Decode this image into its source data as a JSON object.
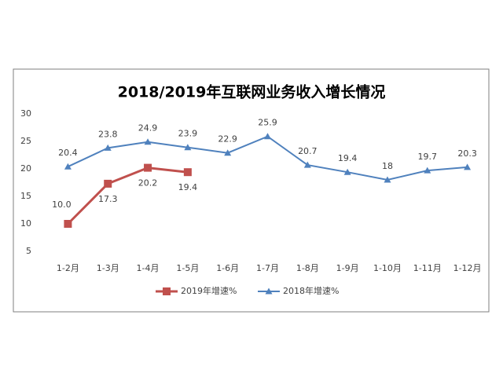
{
  "chart_data": {
    "type": "line",
    "title": "2018/2019年互联网业务收入增长情况",
    "categories": [
      "1-2月",
      "1-3月",
      "1-4月",
      "1-5月",
      "1-6月",
      "1-7月",
      "1-8月",
      "1-9月",
      "1-10月",
      "1-11月",
      "1-12月"
    ],
    "series": [
      {
        "name": "2019年增速%",
        "color": "#c0504d",
        "marker": "square",
        "values": [
          10.0,
          17.3,
          20.2,
          19.4,
          null,
          null,
          null,
          null,
          null,
          null,
          null
        ],
        "value_labels": [
          "10.0",
          "17.3",
          "20.2",
          "19.4",
          null,
          null,
          null,
          null,
          null,
          null,
          null
        ]
      },
      {
        "name": "2018年增速%",
        "color": "#4f81bd",
        "marker": "triangle",
        "values": [
          20.4,
          23.8,
          24.9,
          23.9,
          22.9,
          25.9,
          20.7,
          19.4,
          18,
          19.7,
          20.3
        ]
      }
    ],
    "ylim": [
      5,
      30
    ],
    "yticks": [
      5,
      10,
      15,
      20,
      25,
      30
    ],
    "legend": "bottom"
  }
}
